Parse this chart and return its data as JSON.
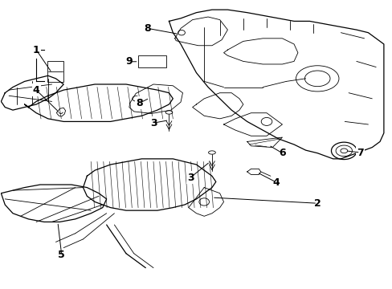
{
  "title": "",
  "background_color": "#ffffff",
  "line_color": "#000000",
  "label_color": "#000000",
  "fig_width": 4.89,
  "fig_height": 3.6,
  "dpi": 100,
  "font_size": 9
}
